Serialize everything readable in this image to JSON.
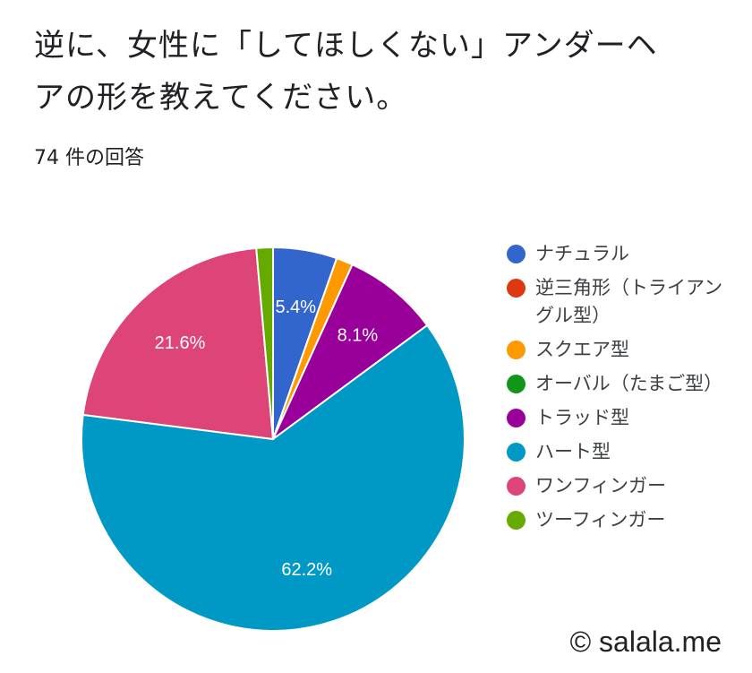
{
  "question": {
    "title": "逆に、女性に「してほしくない」アンダーヘアの形を教えてください。",
    "response_count": "74 件の回答"
  },
  "chart_data": {
    "type": "pie",
    "categories": [
      "ナチュラル",
      "逆三角形（トライアングル型）",
      "スクエア型",
      "オーバル（たまご型）",
      "トラッド型",
      "ハート型",
      "ワンフィンガー",
      "ツーフィンガー"
    ],
    "values": [
      5.4,
      0,
      1.4,
      0,
      8.1,
      62.2,
      21.6,
      1.4
    ],
    "data_labels": [
      "5.4%",
      "",
      "",
      "",
      "8.1%",
      "62.2%",
      "21.6%",
      ""
    ],
    "colors": [
      "#3366cc",
      "#dc3912",
      "#ff9900",
      "#109618",
      "#990099",
      "#0099c6",
      "#dd4477",
      "#66aa00"
    ],
    "legend_position": "right",
    "start_angle_deg": 90,
    "direction": "clockwise"
  },
  "watermark": "© salala.me"
}
